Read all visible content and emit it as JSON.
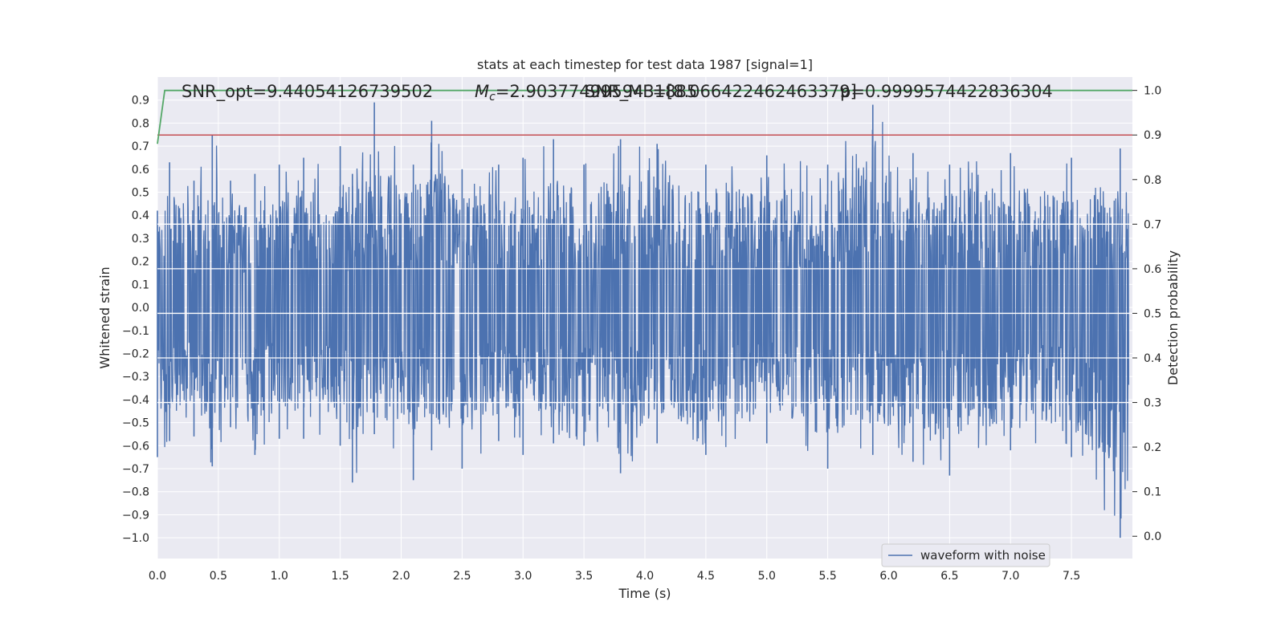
{
  "chart_data": {
    "type": "line",
    "title": "stats at each timestep for test data 1987 [signal=1]",
    "xlabel": "Time (s)",
    "ylabel": "Whitened strain",
    "ylabel_right": "Detection probability",
    "xlim": [
      0.0,
      8.0
    ],
    "ylim": [
      -1.09,
      1.0
    ],
    "ylim_right": [
      -0.05,
      1.03
    ],
    "x_ticks": [
      "0.0",
      "0.5",
      "1.0",
      "1.5",
      "2.0",
      "2.5",
      "3.0",
      "3.5",
      "4.0",
      "4.5",
      "5.0",
      "5.5",
      "6.0",
      "6.5",
      "7.0",
      "7.5"
    ],
    "y_ticks": [
      "0.9",
      "0.8",
      "0.7",
      "0.6",
      "0.5",
      "0.4",
      "0.3",
      "0.2",
      "0.1",
      "0.0",
      "−0.1",
      "−0.2",
      "−0.3",
      "−0.4",
      "−0.5",
      "−0.6",
      "−0.7",
      "−0.8",
      "−0.9",
      "−1.0"
    ],
    "y_ticks_right": [
      "1.0",
      "0.9",
      "0.8",
      "0.7",
      "0.6",
      "0.5",
      "0.4",
      "0.3",
      "0.2",
      "0.1",
      "0.0"
    ],
    "annotations": {
      "snr_opt": "SNR_opt=9.44054126739502",
      "mc_prefix": "M",
      "mc_sub": "c",
      "mc_value": "=2.9037749959431885",
      "snr_mf": "SNR_MF=[8.066422462463379]",
      "p_value": "p=0.9999574422836304"
    },
    "legend": {
      "position": "lower-right",
      "entries": [
        "waveform with noise"
      ]
    },
    "grid": true,
    "colors": {
      "waveform": "#4c72b0",
      "probability": "#55a868",
      "threshold": "#c44e52",
      "background": "#eaeaf2",
      "grid": "#ffffff"
    },
    "series": [
      {
        "name": "waveform with noise",
        "axis": "left",
        "envelope_peaks": {
          "x": [
            0.0,
            0.1,
            0.3,
            0.45,
            0.6,
            0.8,
            1.0,
            1.2,
            1.5,
            1.6,
            1.78,
            2.1,
            2.25,
            2.5,
            2.8,
            3.0,
            3.25,
            3.5,
            3.8,
            4.1,
            4.5,
            5.0,
            5.5,
            5.87,
            6.2,
            6.5,
            7.0,
            7.5,
            7.9
          ],
          "upper": [
            0.42,
            0.63,
            0.55,
            0.75,
            0.55,
            0.58,
            0.62,
            0.65,
            0.7,
            0.58,
            0.89,
            0.62,
            0.81,
            0.6,
            0.62,
            0.65,
            0.73,
            0.62,
            0.73,
            0.71,
            0.62,
            0.66,
            0.62,
            0.88,
            0.67,
            0.62,
            0.67,
            0.65,
            0.69
          ],
          "lower": [
            -0.65,
            -0.58,
            -0.56,
            -0.69,
            -0.52,
            -0.64,
            -0.57,
            -0.57,
            -0.6,
            -0.76,
            -0.55,
            -0.75,
            -0.62,
            -0.7,
            -0.58,
            -0.64,
            -0.59,
            -0.6,
            -0.72,
            -0.59,
            -0.64,
            -0.59,
            -0.7,
            -0.64,
            -0.67,
            -0.73,
            -0.62,
            -0.65,
            -1.0
          ]
        }
      },
      {
        "name": "Detection probability",
        "axis": "right",
        "x": [
          0.0,
          0.06,
          0.12,
          0.5,
          1.0,
          2.0,
          4.0,
          6.0,
          8.0
        ],
        "values": [
          0.88,
          1.0,
          1.0,
          1.0,
          1.0,
          1.0,
          1.0,
          1.0,
          1.0
        ]
      },
      {
        "name": "threshold",
        "axis": "right",
        "x": [
          0.0,
          8.0
        ],
        "values": [
          0.9,
          0.9
        ]
      }
    ]
  }
}
